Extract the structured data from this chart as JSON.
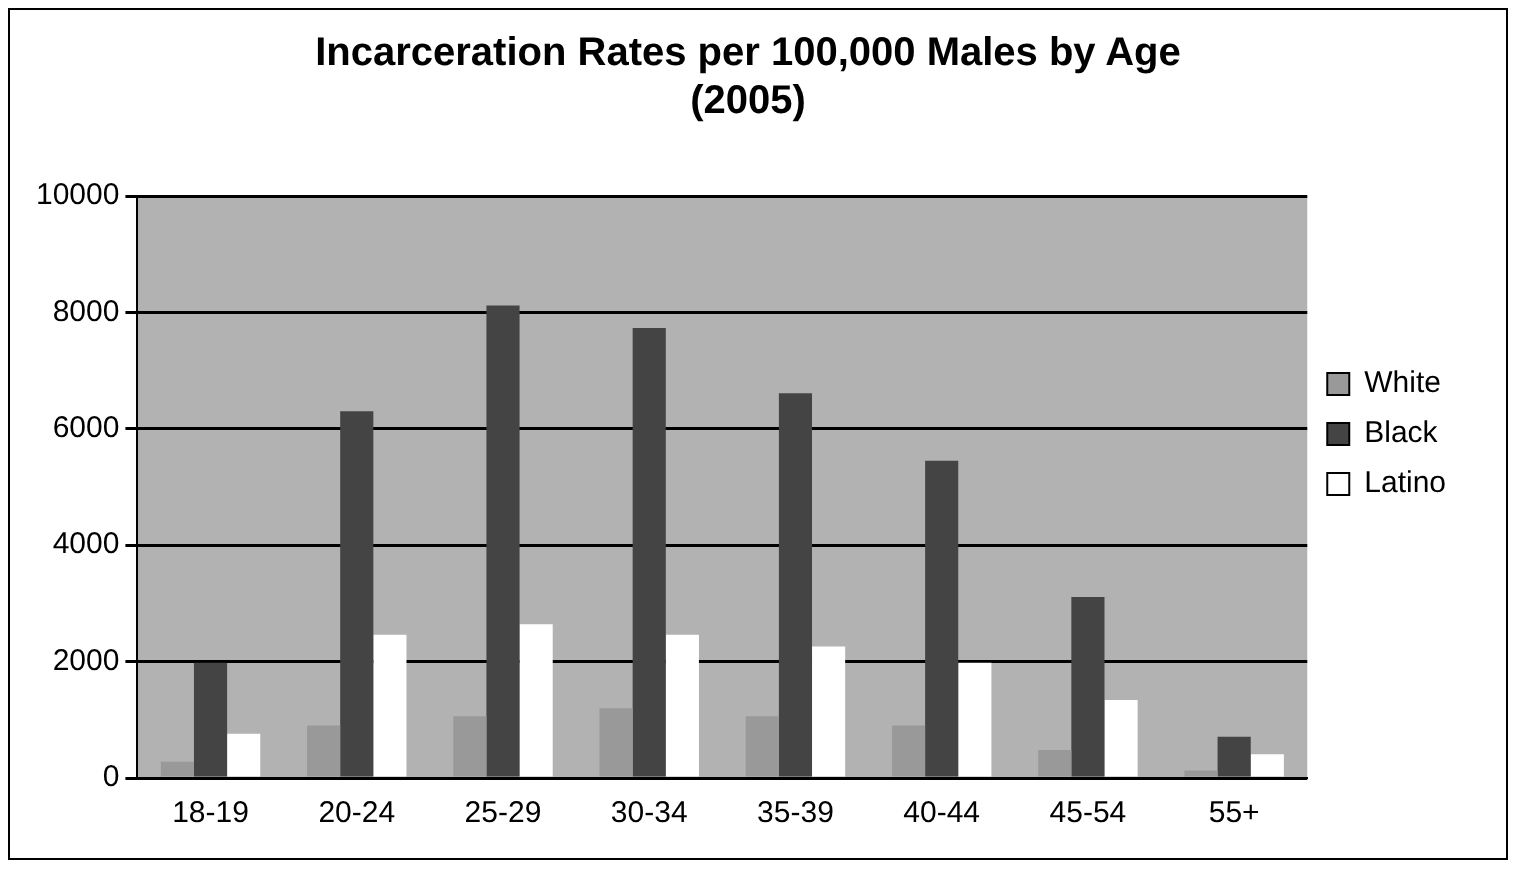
{
  "chart_data": {
    "type": "bar",
    "title": [
      "Incarceration Rates per 100,000 Males by Age",
      "(2005)"
    ],
    "categories": [
      "18-19",
      "20-24",
      "25-29",
      "30-34",
      "35-39",
      "40-44",
      "45-54",
      "55+"
    ],
    "series": [
      {
        "name": "White",
        "color": "#999999",
        "values": [
          280,
          900,
          1060,
          1200,
          1060,
          900,
          480,
          130
        ]
      },
      {
        "name": "Black",
        "color": "#444444",
        "values": [
          1980,
          6300,
          8120,
          7730,
          6610,
          5450,
          3110,
          710
        ]
      },
      {
        "name": "Latino",
        "color": "#ffffff",
        "values": [
          760,
          2460,
          2640,
          2460,
          2260,
          1980,
          1340,
          410
        ]
      }
    ],
    "ylim": [
      0,
      10000
    ],
    "yticks": [
      0,
      2000,
      4000,
      6000,
      8000,
      10000
    ],
    "grid": "y",
    "legend": "right"
  }
}
